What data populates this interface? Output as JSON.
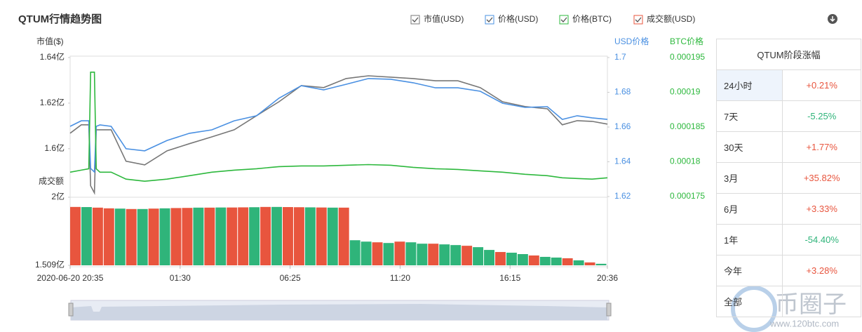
{
  "chart_data": [
    {
      "type": "line",
      "title": "QTUM行情趋势图",
      "y_label": "市值($)",
      "y2_label": "USD价格",
      "y3_label": "BTC价格",
      "x": [
        0,
        30,
        50,
        55,
        65,
        70,
        80,
        110,
        150,
        200,
        260,
        320,
        380,
        440,
        500,
        560,
        620,
        680,
        740,
        800,
        860,
        920,
        980,
        1040,
        1100,
        1160,
        1220,
        1280,
        1320,
        1360,
        1400,
        1441
      ],
      "xlim": [
        0,
        1441
      ],
      "ylim": [
        1.579,
        1.64
      ],
      "yticks": [
        {
          "value": 1.64,
          "label": "1.64亿"
        },
        {
          "value": 1.62,
          "label": "1.62亿"
        },
        {
          "value": 1.6,
          "label": "1.6亿"
        }
      ],
      "y2lim": [
        1.62,
        1.7
      ],
      "y2ticks": [
        1.7,
        1.68,
        1.66,
        1.64,
        1.62
      ],
      "y3lim": [
        0.000175,
        0.000195
      ],
      "y3ticks": [
        0.000195,
        0.00019,
        0.000185,
        0.00018,
        0.000175
      ],
      "series": [
        {
          "name": "市值(USD)",
          "color": "#777777",
          "axis": "y",
          "values": [
            1.6068,
            1.6105,
            1.6105,
            1.5837,
            1.5806,
            1.6083,
            1.6083,
            1.6083,
            1.5945,
            1.5929,
            1.5991,
            1.6022,
            1.6052,
            1.6083,
            1.6145,
            1.6206,
            1.6277,
            1.6268,
            1.6308,
            1.632,
            1.6314,
            1.6308,
            1.6298,
            1.6298,
            1.6268,
            1.6206,
            1.6185,
            1.6175,
            1.6105,
            1.6123,
            1.612,
            1.6108
          ]
        },
        {
          "name": "价格(USD)",
          "color": "#4a90e2",
          "axis": "y2",
          "values": [
            1.6604,
            1.6636,
            1.6636,
            1.6362,
            1.6341,
            1.6604,
            1.6612,
            1.6604,
            1.6475,
            1.6463,
            1.6523,
            1.6564,
            1.6584,
            1.6636,
            1.6665,
            1.6766,
            1.6838,
            1.6814,
            1.6846,
            1.6879,
            1.6875,
            1.6855,
            1.6826,
            1.6826,
            1.6806,
            1.6737,
            1.6713,
            1.6717,
            1.6644,
            1.6665,
            1.6653,
            1.6644
          ]
        },
        {
          "name": "价格(BTC)",
          "color": "#2db83d",
          "axis": "y3",
          "values": [
            0.0001785,
            0.0001788,
            0.000179,
            0.0001929,
            0.0001929,
            0.000179,
            0.0001785,
            0.0001785,
            0.0001775,
            0.0001772,
            0.0001775,
            0.000178,
            0.0001785,
            0.0001788,
            0.000179,
            0.0001793,
            0.0001794,
            0.0001794,
            0.0001795,
            0.0001796,
            0.0001795,
            0.0001792,
            0.000179,
            0.0001789,
            0.0001787,
            0.0001785,
            0.0001782,
            0.000178,
            0.0001777,
            0.0001776,
            0.0001775,
            0.0001777
          ]
        }
      ]
    },
    {
      "type": "bar",
      "y_label": "成交额",
      "name": "成交额(USD)",
      "legend_color": "#e8553e",
      "x": [
        0,
        30,
        60,
        90,
        120,
        150,
        180,
        210,
        240,
        270,
        300,
        330,
        360,
        390,
        420,
        450,
        480,
        510,
        540,
        570,
        600,
        630,
        660,
        690,
        720,
        750,
        780,
        810,
        840,
        870,
        900,
        930,
        960,
        990,
        1020,
        1050,
        1080,
        1110,
        1140,
        1170,
        1200,
        1230,
        1260,
        1290,
        1320,
        1350,
        1380,
        1410
      ],
      "bar_width": 30,
      "values": [
        1.93,
        1.929,
        1.925,
        1.92,
        1.918,
        1.915,
        1.915,
        1.918,
        1.92,
        1.922,
        1.923,
        1.925,
        1.925,
        1.926,
        1.926,
        1.927,
        1.928,
        1.93,
        1.93,
        1.929,
        1.928,
        1.927,
        1.926,
        1.925,
        1.925,
        1.69,
        1.68,
        1.675,
        1.67,
        1.68,
        1.675,
        1.665,
        1.665,
        1.66,
        1.655,
        1.65,
        1.64,
        1.62,
        1.605,
        1.6,
        1.59,
        1.58,
        1.57,
        1.565,
        1.56,
        1.545,
        1.53,
        1.52
      ],
      "colors": [
        "#e8553e",
        "#2fb47a",
        "#e8553e",
        "#e8553e",
        "#2fb47a",
        "#e8553e",
        "#2fb47a",
        "#e8553e",
        "#2fb47a",
        "#e8553e",
        "#e8553e",
        "#2fb47a",
        "#e8553e",
        "#2fb47a",
        "#e8553e",
        "#e8553e",
        "#2fb47a",
        "#e8553e",
        "#2fb47a",
        "#e8553e",
        "#e8553e",
        "#2fb47a",
        "#e8553e",
        "#2fb47a",
        "#e8553e",
        "#2fb47a",
        "#2fb47a",
        "#e8553e",
        "#2fb47a",
        "#e8553e",
        "#2fb47a",
        "#2fb47a",
        "#e8553e",
        "#2fb47a",
        "#2fb47a",
        "#e8553e",
        "#2fb47a",
        "#2fb47a",
        "#e8553e",
        "#2fb47a",
        "#2fb47a",
        "#e8553e",
        "#2fb47a",
        "#2fb47a",
        "#e8553e",
        "#2fb47a",
        "#e8553e",
        "#2fb47a"
      ],
      "xlim": [
        0,
        1441
      ],
      "xticks": [
        {
          "value": 0,
          "label": "2020-06-20 20:35"
        },
        {
          "value": 295,
          "label": "01:30"
        },
        {
          "value": 590,
          "label": "06:25"
        },
        {
          "value": 885,
          "label": "11:20"
        },
        {
          "value": 1180,
          "label": "16:15"
        },
        {
          "value": 1441,
          "label": "20:36"
        }
      ],
      "ylim": [
        1.509,
        2
      ],
      "yticks": [
        {
          "value": 2,
          "label": "2亿"
        },
        {
          "value": 1.509,
          "label": "1.509亿"
        }
      ]
    }
  ],
  "side_table": {
    "title": "QTUM阶段涨幅",
    "rows": [
      [
        "24小时",
        "+0.21%"
      ],
      [
        "7天",
        "-5.25%"
      ],
      [
        "30天",
        "+1.77%"
      ],
      [
        "3月",
        "+35.82%"
      ],
      [
        "6月",
        "+3.33%"
      ],
      [
        "1年",
        "-54.40%"
      ],
      [
        "今年",
        "+3.28%"
      ],
      [
        "全部"
      ]
    ]
  },
  "watermark": {
    "name": "币圈子",
    "url": "www.120btc.com"
  }
}
